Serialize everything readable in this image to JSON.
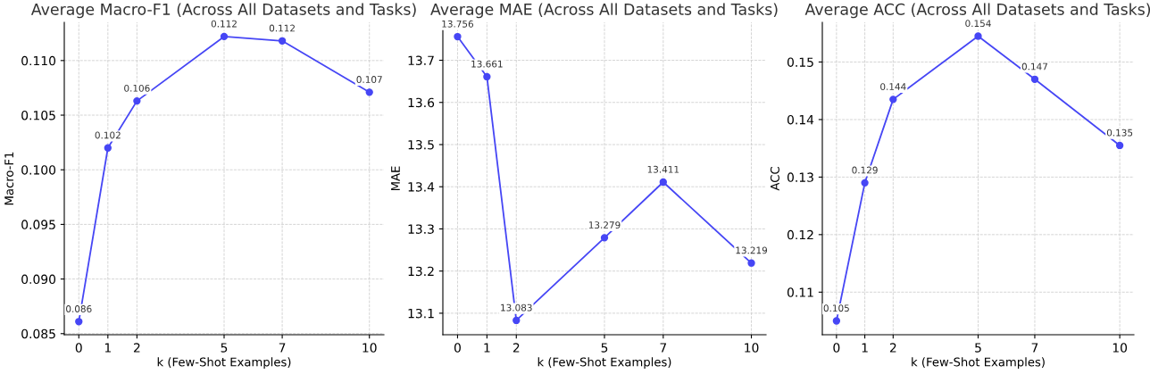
{
  "chart_data": [
    {
      "type": "line",
      "title": "Average Macro-F1 (Across All Datasets and Tasks)",
      "xlabel": "k (Few-Shot Examples)",
      "ylabel": "Macro-F1",
      "marker": "circle",
      "line_style": "solid",
      "grid": true,
      "x": [
        0,
        1,
        2,
        5,
        7,
        10
      ],
      "xlim": [
        -0.5,
        10.5
      ],
      "xticks": [
        0,
        1,
        2,
        5,
        7,
        10
      ],
      "ylim": [
        0.0849,
        0.1135
      ],
      "yticks": [
        {
          "value": 0.085,
          "label": "0.085"
        },
        {
          "value": 0.09,
          "label": "0.090"
        },
        {
          "value": 0.095,
          "label": "0.095"
        },
        {
          "value": 0.1,
          "label": "0.100"
        },
        {
          "value": 0.105,
          "label": "0.105"
        },
        {
          "value": 0.11,
          "label": "0.110"
        }
      ],
      "series": [
        {
          "color": "#4646f5",
          "values": [
            0.0861,
            0.102,
            0.1063,
            0.1122,
            0.1118,
            0.1071
          ],
          "value_labels": [
            "0.086",
            "0.102",
            "0.106",
            "0.112",
            "0.112",
            "0.107"
          ]
        }
      ]
    },
    {
      "type": "line",
      "title": "Average MAE (Across All Datasets and Tasks)",
      "xlabel": "k (Few-Shot Examples)",
      "ylabel": "MAE",
      "marker": "circle",
      "line_style": "solid",
      "grid": true,
      "x": [
        0,
        1,
        2,
        5,
        7,
        10
      ],
      "xlim": [
        -0.5,
        10.5
      ],
      "xticks": [
        0,
        1,
        2,
        5,
        7,
        10
      ],
      "ylim": [
        13.049,
        13.79
      ],
      "yticks": [
        13.1,
        13.2,
        13.3,
        13.4,
        13.5,
        13.6,
        13.7
      ],
      "series": [
        {
          "color": "#4646f5",
          "values": [
            13.756,
            13.661,
            13.083,
            13.279,
            13.411,
            13.219
          ],
          "value_labels": [
            "13.756",
            "13.661",
            "13.083",
            "13.279",
            "13.411",
            "13.219"
          ]
        }
      ]
    },
    {
      "type": "line",
      "title": "Average ACC (Across All Datasets and Tasks)",
      "xlabel": "k (Few-Shot Examples)",
      "ylabel": "ACC",
      "marker": "circle",
      "line_style": "solid",
      "grid": true,
      "x": [
        0,
        1,
        2,
        5,
        7,
        10
      ],
      "xlim": [
        -0.5,
        10.5
      ],
      "xticks": [
        0,
        1,
        2,
        5,
        7,
        10
      ],
      "ylim": [
        0.1026,
        0.1569
      ],
      "yticks": [
        0.11,
        0.12,
        0.13,
        0.14,
        0.15
      ],
      "series": [
        {
          "color": "#4646f5",
          "values": [
            0.105,
            0.129,
            0.1435,
            0.1545,
            0.147,
            0.1355
          ],
          "value_labels": [
            "0.105",
            "0.129",
            "0.144",
            "0.154",
            "0.147",
            "0.135"
          ]
        }
      ]
    }
  ]
}
